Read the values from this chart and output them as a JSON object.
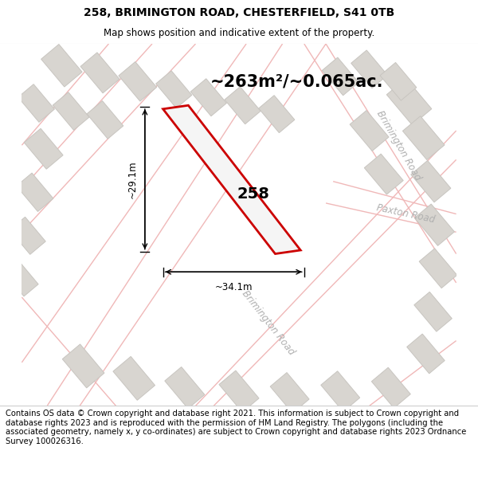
{
  "title": "258, BRIMINGTON ROAD, CHESTERFIELD, S41 0TB",
  "subtitle": "Map shows position and indicative extent of the property.",
  "area_label": "~263m²/~0.065ac.",
  "plot_number": "258",
  "width_label": "~34.1m",
  "height_label": "~29.1m",
  "footer_text": "Contains OS data © Crown copyright and database right 2021. This information is subject to Crown copyright and database rights 2023 and is reproduced with the permission of HM Land Registry. The polygons (including the associated geometry, namely x, y co-ordinates) are subject to Crown copyright and database rights 2023 Ordnance Survey 100026316.",
  "map_bg": "#f2f0ed",
  "plot_fill": "#f5f5f5",
  "plot_edge": "#cc0000",
  "road_line_color": "#f0b8b8",
  "building_fill": "#d8d5d0",
  "building_edge": "#c8c5c0",
  "title_fontsize": 10,
  "subtitle_fontsize": 8.5,
  "area_fontsize": 15,
  "plot_num_fontsize": 14,
  "dim_fontsize": 8.5,
  "footer_fontsize": 7.2,
  "road_label_color": "#b0b0b0",
  "road_label_fontsize": 8.5
}
